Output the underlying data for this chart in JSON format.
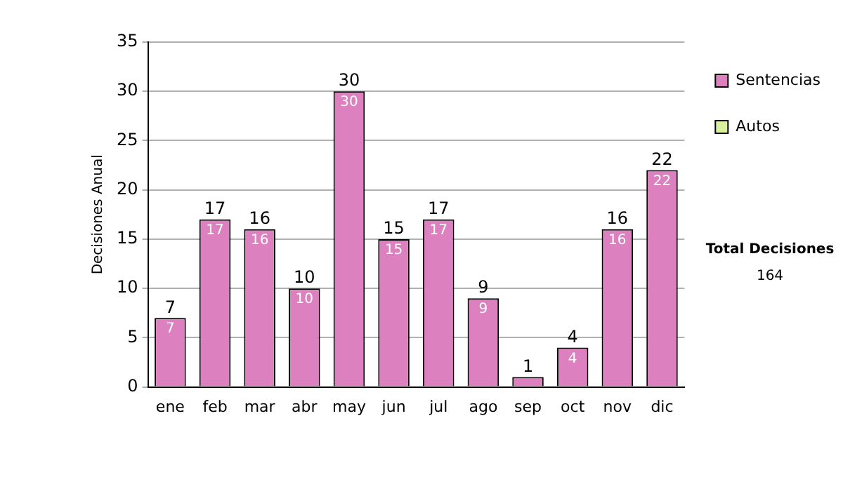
{
  "chart_data": {
    "type": "bar",
    "stacked": true,
    "ylabel": "Decisiones Anual",
    "categories": [
      "ene",
      "feb",
      "mar",
      "abr",
      "may",
      "jun",
      "jul",
      "ago",
      "sep",
      "oct",
      "nov",
      "dic"
    ],
    "series": [
      {
        "name": "Sentencias",
        "color": "#dd80c0",
        "values": [
          7,
          17,
          16,
          10,
          30,
          15,
          17,
          9,
          1,
          4,
          16,
          22
        ],
        "value_labels": [
          "7",
          "17",
          "16",
          "10",
          "30",
          "15",
          "17",
          "9",
          null,
          "4",
          "16",
          "22"
        ]
      },
      {
        "name": "Autos",
        "color": "#d8f0a0",
        "values": [
          0,
          0,
          0,
          0,
          0,
          0,
          0,
          0,
          0,
          0,
          0,
          0
        ]
      }
    ],
    "totals": [
      "7",
      "17",
      "16",
      "10",
      "30",
      "15",
      "17",
      "9",
      "1",
      "4",
      "16",
      "22"
    ],
    "ylim": [
      0,
      35
    ],
    "yticks": [
      0,
      5,
      10,
      15,
      20,
      25,
      30,
      35
    ],
    "grid": "y",
    "legend": "right",
    "annotations": [
      "Total Decisiones",
      "164"
    ]
  }
}
